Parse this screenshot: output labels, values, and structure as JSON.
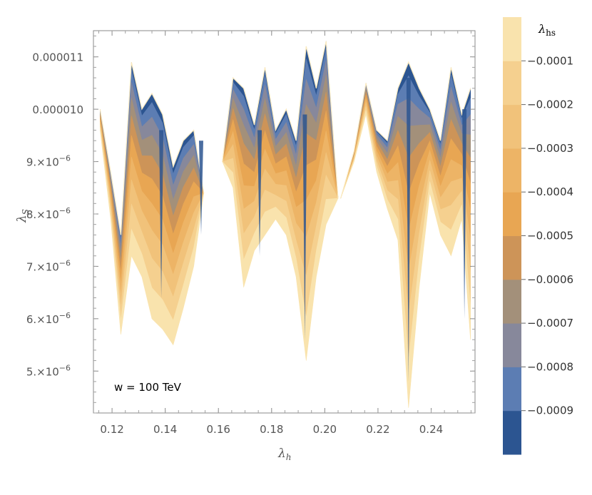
{
  "chart_data": {
    "type": "contour",
    "xlabel_main": "λ",
    "xlabel_sub": "h",
    "ylabel_main": "λ",
    "ylabel_sub": "S",
    "xlim": [
      0.113,
      0.2565
    ],
    "ylim": [
      4.2e-06,
      1.15e-05
    ],
    "x_ticks": [
      {
        "value": 0.12,
        "label": "0.12"
      },
      {
        "value": 0.14,
        "label": "0.14"
      },
      {
        "value": 0.16,
        "label": "0.16"
      },
      {
        "value": 0.18,
        "label": "0.18"
      },
      {
        "value": 0.2,
        "label": "0.20"
      },
      {
        "value": 0.22,
        "label": "0.22"
      },
      {
        "value": 0.24,
        "label": "0.24"
      }
    ],
    "y_ticks": [
      {
        "value": 5e-06,
        "mant": "5.×10",
        "exp": "−6"
      },
      {
        "value": 6e-06,
        "mant": "6.×10",
        "exp": "−6"
      },
      {
        "value": 7e-06,
        "mant": "7.×10",
        "exp": "−6"
      },
      {
        "value": 8e-06,
        "mant": "8.×10",
        "exp": "−6"
      },
      {
        "value": 9e-06,
        "mant": "9.×10",
        "exp": "−6"
      },
      {
        "value": 1e-05,
        "mant": "0.000010",
        "exp": ""
      },
      {
        "value": 1.1e-05,
        "mant": "0.000011",
        "exp": ""
      }
    ],
    "annotation": "w = 100 TeV",
    "colorbar": {
      "title_main": "λ",
      "title_sub": "hs",
      "range": [
        -0.001,
        0.0
      ],
      "ticks": [
        {
          "value": -0.0001,
          "label": "−0.0001"
        },
        {
          "value": -0.0002,
          "label": "−0.0002"
        },
        {
          "value": -0.0003,
          "label": "−0.0003"
        },
        {
          "value": -0.0004,
          "label": "−0.0004"
        },
        {
          "value": -0.0005,
          "label": "−0.0005"
        },
        {
          "value": -0.0006,
          "label": "−0.0006"
        },
        {
          "value": -0.0007,
          "label": "−0.0007"
        },
        {
          "value": -0.0008,
          "label": "−0.0008"
        },
        {
          "value": -0.0009,
          "label": "−0.0009"
        }
      ],
      "levels": [
        {
          "min": -0.001,
          "max": -0.0009,
          "color": "#2c5591"
        },
        {
          "min": -0.0009,
          "max": -0.0008,
          "color": "#5c7db3"
        },
        {
          "min": -0.0008,
          "max": -0.0007,
          "color": "#87889b"
        },
        {
          "min": -0.0007,
          "max": -0.0006,
          "color": "#a3907a"
        },
        {
          "min": -0.0006,
          "max": -0.0005,
          "color": "#cd9458"
        },
        {
          "min": -0.0005,
          "max": -0.0004,
          "color": "#e8a653"
        },
        {
          "min": -0.0004,
          "max": -0.0003,
          "color": "#edb466"
        },
        {
          "min": -0.0003,
          "max": -0.0002,
          "color": "#f1c27a"
        },
        {
          "min": -0.0002,
          "max": -0.0001,
          "color": "#f5d08f"
        },
        {
          "min": -0.0001,
          "max": 0.0,
          "color": "#f9e3ad"
        }
      ]
    },
    "regions": [
      {
        "x": [
          0.1155,
          0.1195,
          0.1233,
          0.1273,
          0.1312,
          0.135,
          0.139,
          0.143,
          0.1468,
          0.1507,
          0.1545
        ],
        "top": [
          1e-05,
          8.8e-06,
          7.6e-06,
          1.09e-05,
          1e-05,
          1.03e-05,
          9.9e-06,
          8.9e-06,
          9.4e-06,
          9.6e-06,
          8.4e-06
        ],
        "bottom": [
          9.6e-06,
          7.9e-06,
          5.7e-06,
          7.2e-06,
          6.8e-06,
          6e-06,
          5.8e-06,
          5.5e-06,
          6.2e-06,
          7e-06,
          8.4e-06
        ]
      },
      {
        "x": [
          0.1615,
          0.1655,
          0.1695,
          0.1735,
          0.1775,
          0.1815,
          0.1855,
          0.1892,
          0.193,
          0.1968,
          0.2005,
          0.205
        ],
        "top": [
          9e-06,
          1.06e-05,
          1.04e-05,
          9.7e-06,
          1.08e-05,
          9.6e-06,
          1e-05,
          9.4e-06,
          1.12e-05,
          1.04e-05,
          1.13e-05,
          8.3e-06
        ],
        "bottom": [
          9e-06,
          8.5e-06,
          6.6e-06,
          7.3e-06,
          7.6e-06,
          7.9e-06,
          7.6e-06,
          6.8e-06,
          5.2e-06,
          6.8e-06,
          7.8e-06,
          8.3e-06
        ]
      },
      {
        "x": [
          0.206,
          0.211,
          0.2155,
          0.2195,
          0.2235,
          0.2275,
          0.2315,
          0.2355,
          0.2395,
          0.2435,
          0.2475,
          0.2515,
          0.2548
        ],
        "top": [
          8.3e-06,
          9.2e-06,
          1.05e-05,
          9.6e-06,
          9.4e-06,
          1.04e-05,
          1.09e-05,
          1.04e-05,
          1e-05,
          9.4e-06,
          1.08e-05,
          9.9e-06,
          1.04e-05
        ],
        "bottom": [
          8.3e-06,
          9e-06,
          9.9e-06,
          8.8e-06,
          8.1e-06,
          7.5e-06,
          4.3e-06,
          6.6e-06,
          8.4e-06,
          7.6e-06,
          7.2e-06,
          7.9e-06,
          5.6e-06
        ]
      }
    ],
    "spikes": [
      {
        "x": 0.1385,
        "y": 9.6e-06,
        "to": 6.4e-06
      },
      {
        "x": 0.1535,
        "y": 9.4e-06,
        "to": 7.6e-06
      },
      {
        "x": 0.1755,
        "y": 9.6e-06,
        "to": 7.2e-06
      },
      {
        "x": 0.1925,
        "y": 9.9e-06,
        "to": 5.6e-06
      },
      {
        "x": 0.2315,
        "y": 1.06e-05,
        "to": 4.8e-06
      },
      {
        "x": 0.2525,
        "y": 1e-05,
        "to": 6e-06
      }
    ]
  }
}
